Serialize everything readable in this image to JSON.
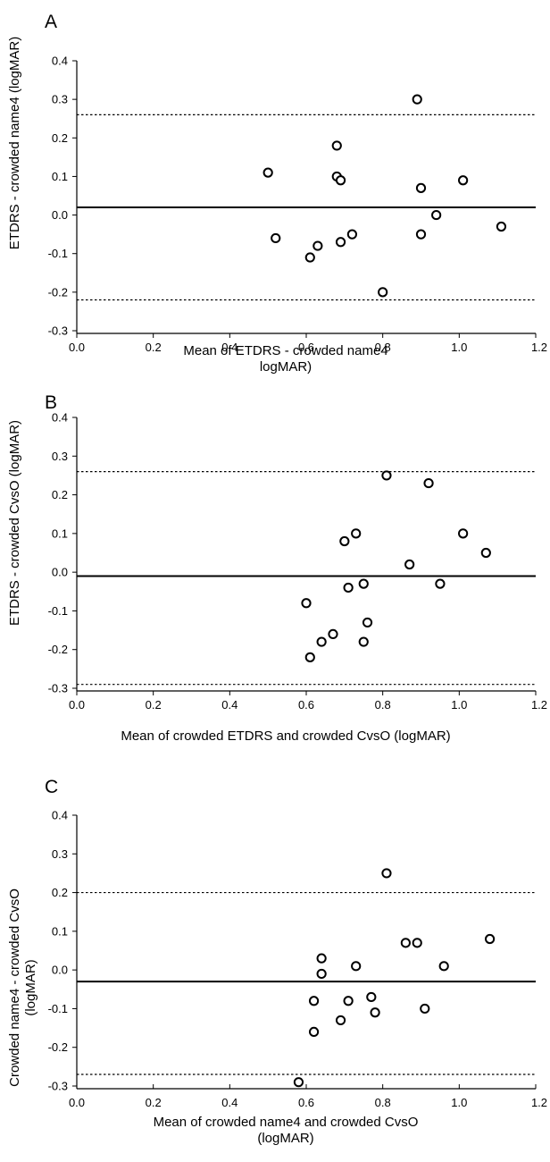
{
  "chart_data": [
    {
      "type": "scatter",
      "panel_label": "A",
      "xlabel": [
        "Mean of ETDRS - crowded name4",
        "logMAR)"
      ],
      "ylabel": [
        "ETDRS - crowded name4 (logMAR)"
      ],
      "xlim": [
        0.0,
        1.2
      ],
      "ylim": [
        -0.3,
        0.4
      ],
      "x_ticks": [
        "0.0",
        "0.2",
        "0.4",
        "0.6",
        "0.8",
        "1.0",
        "1.2"
      ],
      "y_ticks": [
        "0.4",
        "0.3",
        "0.2",
        "0.1",
        "0.0",
        "-0.1",
        "-0.2",
        "-0.3"
      ],
      "mean_line": 0.02,
      "upper_limit": 0.26,
      "lower_limit": -0.22,
      "points": [
        [
          0.5,
          0.11
        ],
        [
          0.52,
          -0.06
        ],
        [
          0.61,
          -0.11
        ],
        [
          0.63,
          -0.08
        ],
        [
          0.68,
          0.18
        ],
        [
          0.68,
          0.1
        ],
        [
          0.69,
          0.09
        ],
        [
          0.69,
          -0.07
        ],
        [
          0.72,
          -0.05
        ],
        [
          0.8,
          -0.2
        ],
        [
          0.89,
          0.3
        ],
        [
          0.9,
          0.07
        ],
        [
          0.9,
          -0.05
        ],
        [
          0.94,
          0.0
        ],
        [
          1.01,
          0.09
        ],
        [
          1.11,
          -0.03
        ]
      ]
    },
    {
      "type": "scatter",
      "panel_label": "B",
      "xlabel": [
        "Mean of crowded ETDRS  and crowded CvsO (logMAR)"
      ],
      "ylabel": [
        "ETDRS - crowded CvsO (logMAR)"
      ],
      "xlim": [
        0.0,
        1.2
      ],
      "ylim": [
        -0.3,
        0.4
      ],
      "x_ticks": [
        "0.0",
        "0.2",
        "0.4",
        "0.6",
        "0.8",
        "1.0",
        "1.2"
      ],
      "y_ticks": [
        "0.4",
        "0.3",
        "0.2",
        "0.1",
        "0.0",
        "-0.1",
        "-0.2",
        "-0.3"
      ],
      "mean_line": -0.01,
      "upper_limit": 0.26,
      "lower_limit": -0.29,
      "points": [
        [
          0.6,
          -0.08
        ],
        [
          0.61,
          -0.22
        ],
        [
          0.64,
          -0.18
        ],
        [
          0.67,
          -0.16
        ],
        [
          0.7,
          0.08
        ],
        [
          0.71,
          -0.04
        ],
        [
          0.73,
          0.1
        ],
        [
          0.75,
          -0.03
        ],
        [
          0.75,
          -0.18
        ],
        [
          0.76,
          -0.13
        ],
        [
          0.81,
          0.25
        ],
        [
          0.87,
          0.02
        ],
        [
          0.92,
          0.23
        ],
        [
          0.95,
          -0.03
        ],
        [
          1.01,
          0.1
        ],
        [
          1.07,
          0.05
        ]
      ]
    },
    {
      "type": "scatter",
      "panel_label": "C",
      "xlabel": [
        "Mean of crowded name4 and crowded CvsO",
        "(logMAR)"
      ],
      "ylabel": [
        "Crowded name4 - crowded CvsO",
        "(logMAR)"
      ],
      "xlim": [
        0.0,
        1.2
      ],
      "ylim": [
        -0.3,
        0.4
      ],
      "x_ticks": [
        "0.0",
        "0.2",
        "0.4",
        "0.6",
        "0.8",
        "1.0",
        "1.2"
      ],
      "y_ticks": [
        "0.4",
        "0.3",
        "0.2",
        "0.1",
        "0.0",
        "-0.1",
        "-0.2",
        "-0.3"
      ],
      "mean_line": -0.03,
      "upper_limit": 0.2,
      "lower_limit": -0.27,
      "points": [
        [
          0.58,
          -0.29
        ],
        [
          0.62,
          -0.08
        ],
        [
          0.62,
          -0.16
        ],
        [
          0.64,
          0.03
        ],
        [
          0.64,
          -0.01
        ],
        [
          0.69,
          -0.13
        ],
        [
          0.71,
          -0.08
        ],
        [
          0.73,
          0.01
        ],
        [
          0.77,
          -0.07
        ],
        [
          0.78,
          -0.11
        ],
        [
          0.81,
          0.25
        ],
        [
          0.86,
          0.07
        ],
        [
          0.89,
          0.07
        ],
        [
          0.91,
          -0.1
        ],
        [
          0.96,
          0.01
        ],
        [
          1.08,
          0.08
        ]
      ]
    }
  ]
}
